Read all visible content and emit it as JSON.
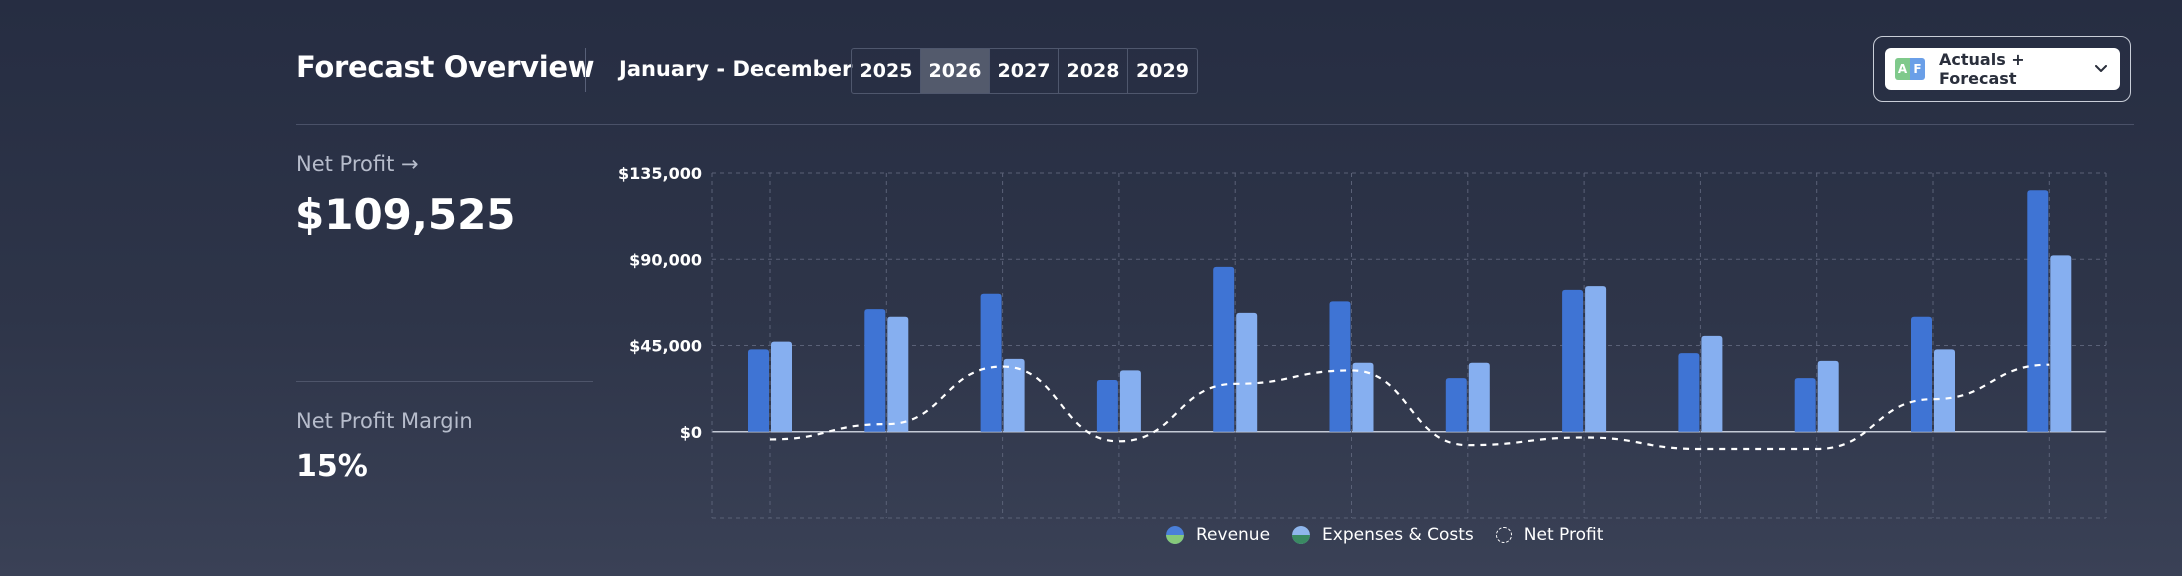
{
  "header": {
    "title": "Forecast Overview",
    "period": "January - December",
    "years": [
      "2025",
      "2026",
      "2027",
      "2028",
      "2029"
    ],
    "selected_year": "2026",
    "mode": {
      "icon_letters": [
        "A",
        "F"
      ],
      "label": "Actuals + Forecast"
    }
  },
  "kpis": {
    "net_profit_label": "Net Profit →",
    "net_profit_value": "$109,525",
    "margin_label": "Net Profit Margin",
    "margin_value": "15%"
  },
  "colors": {
    "revenue": "#3f74d4",
    "expenses": "#86aff0",
    "net_profit_line": "#ffffff",
    "revenue_swatch_top": "#4a7fd9",
    "revenue_swatch_bottom": "#86c97a",
    "expenses_swatch_top": "#8fb6ec",
    "expenses_swatch_bottom": "#3a8a62"
  },
  "chart_data": {
    "type": "bar",
    "categories": [
      "",
      "",
      "",
      "",
      "",
      "",
      "",
      "",
      "",
      "",
      "",
      ""
    ],
    "series": [
      {
        "name": "Revenue",
        "type": "bar",
        "values": [
          43000,
          64000,
          72000,
          27000,
          86000,
          68000,
          28000,
          74000,
          41000,
          28000,
          60000,
          126000
        ]
      },
      {
        "name": "Expenses & Costs",
        "type": "bar",
        "values": [
          47000,
          60000,
          38000,
          32000,
          62000,
          36000,
          36000,
          76000,
          50000,
          37000,
          43000,
          92000
        ]
      },
      {
        "name": "Net Profit",
        "type": "line",
        "style": "dashed",
        "smooth": true,
        "values": [
          -4000,
          4000,
          34000,
          -5000,
          25000,
          32000,
          -7000,
          -3000,
          -9000,
          -9000,
          17000,
          35000
        ]
      }
    ],
    "ylim": [
      -45000,
      135000
    ],
    "yticks": [
      0,
      45000,
      90000,
      135000
    ],
    "ytick_labels": [
      "$0",
      "$45,000",
      "$90,000",
      "$135,000"
    ],
    "grid": true,
    "legend_position": "bottom-center",
    "legend": [
      "Revenue",
      "Expenses & Costs",
      "Net Profit"
    ]
  }
}
